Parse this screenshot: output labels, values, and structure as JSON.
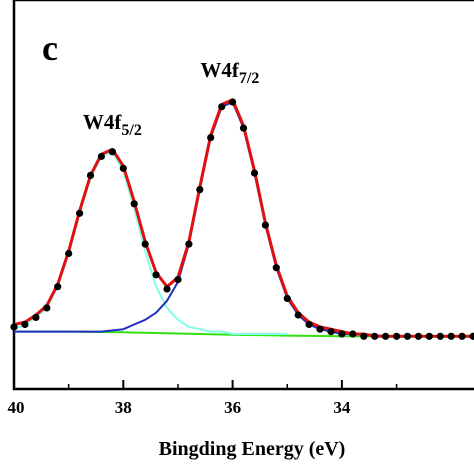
{
  "chart_data": {
    "type": "line",
    "panel_label": "c",
    "xlabel": "Bingding Energy (eV)",
    "ylabel": "",
    "xlim": [
      40,
      31.4
    ],
    "ylim": [
      -0.12,
      1.0
    ],
    "x_reversed": true,
    "x_ticks": [
      40,
      38,
      36,
      34
    ],
    "x_tick_labels": [
      "40",
      "38",
      "36",
      "34"
    ],
    "grid": false,
    "annotations": [
      {
        "main": "W4f",
        "sub": "5/2",
        "x": 38.2,
        "y": 0.78
      },
      {
        "main": "W4f",
        "sub": "7/2",
        "x": 36.05,
        "y": 1.0
      }
    ],
    "colors": {
      "raw": "#000000",
      "envelope": "#e01010",
      "w4f52": "#80ffe8",
      "w4f72": "#2030c0",
      "background": "#30e010",
      "axis": "#000000"
    },
    "series": [
      {
        "role": "raw",
        "style": "dots",
        "x": [
          40.0,
          39.8,
          39.6,
          39.4,
          39.2,
          39.0,
          38.8,
          38.6,
          38.4,
          38.2,
          38.0,
          37.8,
          37.6,
          37.4,
          37.2,
          37.0,
          36.8,
          36.6,
          36.4,
          36.2,
          36.0,
          35.8,
          35.6,
          35.4,
          35.2,
          35.0,
          34.8,
          34.6,
          34.4,
          34.2,
          34.0,
          33.8,
          33.6,
          33.4,
          33.2,
          33.0,
          32.8,
          32.6,
          32.4,
          32.2,
          32.0,
          31.8,
          31.6,
          31.4
        ],
        "values": [
          0.02,
          0.03,
          0.06,
          0.1,
          0.19,
          0.33,
          0.5,
          0.66,
          0.74,
          0.76,
          0.69,
          0.54,
          0.37,
          0.24,
          0.18,
          0.22,
          0.37,
          0.6,
          0.82,
          0.95,
          0.97,
          0.86,
          0.67,
          0.45,
          0.27,
          0.14,
          0.07,
          0.03,
          0.01,
          0.0,
          -0.01,
          -0.01,
          -0.02,
          -0.02,
          -0.02,
          -0.02,
          -0.02,
          -0.02,
          -0.02,
          -0.02,
          -0.02,
          -0.02,
          -0.02,
          -0.02
        ]
      },
      {
        "role": "envelope",
        "style": "line",
        "x": [
          40.0,
          39.8,
          39.6,
          39.4,
          39.2,
          39.0,
          38.8,
          38.6,
          38.4,
          38.2,
          38.0,
          37.8,
          37.6,
          37.4,
          37.2,
          37.0,
          36.8,
          36.6,
          36.4,
          36.2,
          36.0,
          35.8,
          35.6,
          35.4,
          35.2,
          35.0,
          34.8,
          34.6,
          34.4,
          34.2,
          34.0,
          33.8,
          33.6,
          33.4,
          33.2,
          33.0,
          32.8,
          32.6,
          32.4,
          32.2,
          32.0,
          31.8,
          31.6,
          31.4
        ],
        "values": [
          0.03,
          0.04,
          0.07,
          0.11,
          0.2,
          0.34,
          0.51,
          0.66,
          0.75,
          0.77,
          0.7,
          0.55,
          0.38,
          0.25,
          0.19,
          0.23,
          0.38,
          0.61,
          0.83,
          0.96,
          0.98,
          0.87,
          0.68,
          0.46,
          0.28,
          0.15,
          0.08,
          0.04,
          0.02,
          0.01,
          0.0,
          -0.01,
          -0.01,
          -0.02,
          -0.02,
          -0.02,
          -0.02,
          -0.02,
          -0.02,
          -0.02,
          -0.02,
          -0.02,
          -0.02,
          -0.02
        ]
      },
      {
        "role": "w4f52",
        "style": "line",
        "x": [
          40.0,
          39.8,
          39.6,
          39.4,
          39.2,
          39.0,
          38.8,
          38.6,
          38.4,
          38.2,
          38.0,
          37.8,
          37.6,
          37.4,
          37.2,
          37.0,
          36.8,
          36.6,
          36.4,
          36.2,
          36.0,
          35.8,
          35.6,
          35.4,
          35.2,
          35.0
        ],
        "values": [
          0.01,
          0.03,
          0.06,
          0.1,
          0.19,
          0.33,
          0.5,
          0.65,
          0.74,
          0.76,
          0.68,
          0.52,
          0.34,
          0.19,
          0.1,
          0.05,
          0.02,
          0.01,
          0.0,
          0.0,
          -0.01,
          -0.01,
          -0.01,
          -0.01,
          -0.01,
          -0.01
        ]
      },
      {
        "role": "w4f72",
        "style": "line",
        "x": [
          40.0,
          39.6,
          39.2,
          38.8,
          38.4,
          38.0,
          37.8,
          37.6,
          37.4,
          37.2,
          37.0,
          36.8,
          36.6,
          36.4,
          36.2,
          36.0,
          35.8,
          35.6,
          35.4,
          35.2,
          35.0,
          34.8,
          34.6,
          34.4,
          34.2,
          34.0,
          33.6,
          33.2,
          32.8,
          32.4,
          32.0,
          31.6,
          31.4
        ],
        "values": [
          0.0,
          0.0,
          0.0,
          0.0,
          0.0,
          0.01,
          0.03,
          0.05,
          0.08,
          0.13,
          0.21,
          0.37,
          0.6,
          0.82,
          0.95,
          0.97,
          0.86,
          0.67,
          0.45,
          0.27,
          0.14,
          0.07,
          0.03,
          0.01,
          0.0,
          -0.01,
          -0.01,
          -0.02,
          -0.02,
          -0.02,
          -0.02,
          -0.02,
          -0.02
        ]
      },
      {
        "role": "background",
        "style": "line",
        "x": [
          40.0,
          39.0,
          38.0,
          37.0,
          36.0,
          35.0,
          34.0,
          33.0,
          32.0,
          31.4
        ],
        "values": [
          0.0,
          0.0,
          -0.003,
          -0.008,
          -0.013,
          -0.017,
          -0.02,
          -0.021,
          -0.022,
          -0.022
        ]
      }
    ]
  }
}
